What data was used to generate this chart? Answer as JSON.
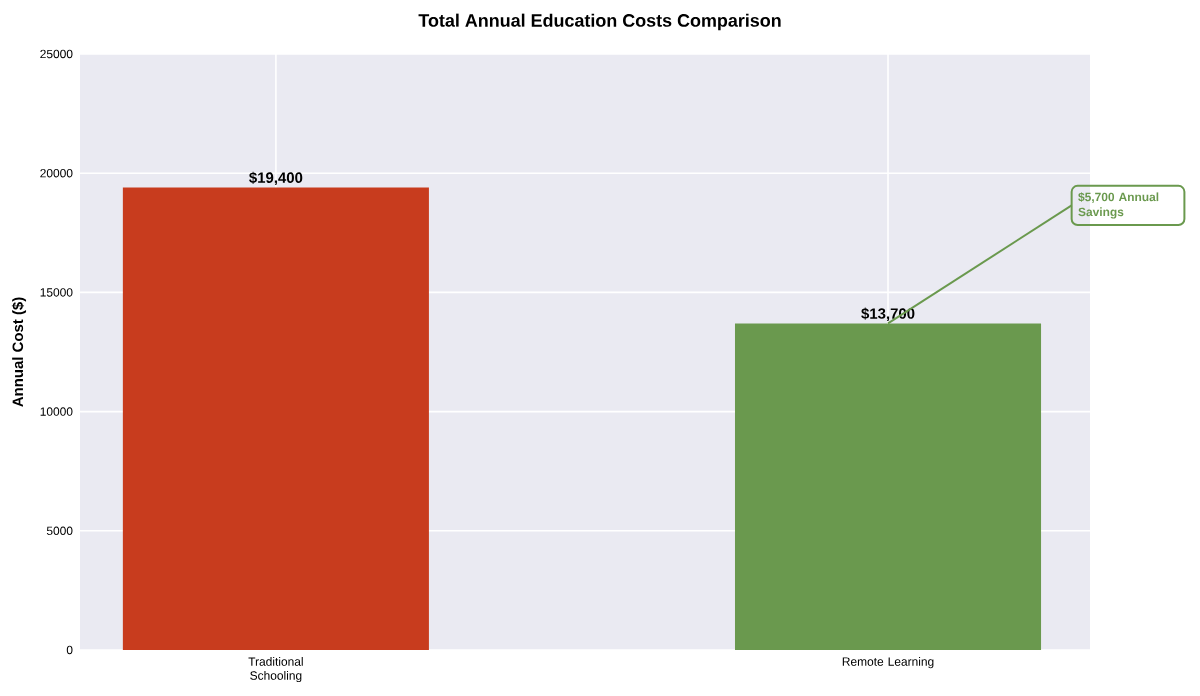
{
  "chart_data": {
    "type": "bar",
    "title": "Total Annual Education Costs Comparison",
    "ylabel": "Annual Cost ($)",
    "categories": [
      "Traditional Schooling",
      "Remote Learning"
    ],
    "values": [
      19400,
      13700
    ],
    "colors": [
      "#c83c1e",
      "#6a994e"
    ],
    "value_labels": [
      "$19,400",
      "$13,700"
    ],
    "ylim": [
      0,
      25000
    ],
    "yticks": [
      0,
      5000,
      10000,
      15000,
      20000,
      25000
    ],
    "grid": true,
    "annotations": [
      {
        "text": "$5,700 Annual Savings",
        "x": "Remote Learning",
        "y": 13700
      }
    ]
  }
}
